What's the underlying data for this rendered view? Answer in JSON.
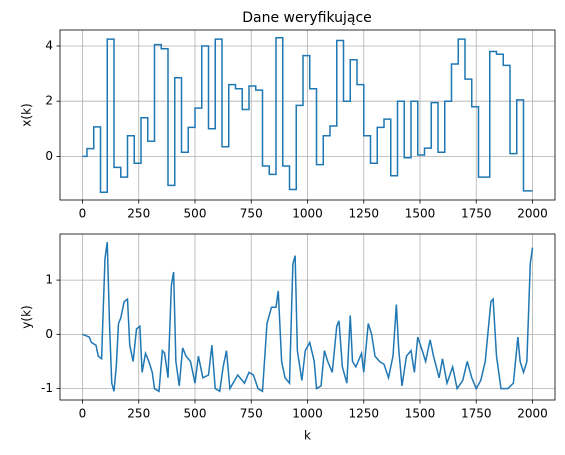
{
  "chart_data": [
    {
      "type": "step",
      "title": "Dane weryfikujące",
      "ylabel": "x(k)",
      "color": "#1f77b4",
      "grid": true,
      "xlim": [
        -100,
        2100
      ],
      "ylim": [
        -1.58,
        4.58
      ],
      "xticks": [
        0,
        250,
        500,
        750,
        1000,
        1250,
        1500,
        1750,
        2000
      ],
      "yticks": [
        0,
        2,
        4
      ],
      "x": [
        0,
        20,
        50,
        80,
        110,
        140,
        170,
        200,
        230,
        260,
        290,
        320,
        350,
        380,
        410,
        440,
        470,
        500,
        530,
        560,
        590,
        620,
        650,
        680,
        710,
        740,
        770,
        800,
        830,
        860,
        890,
        920,
        950,
        980,
        1010,
        1040,
        1070,
        1100,
        1130,
        1160,
        1190,
        1220,
        1250,
        1280,
        1310,
        1340,
        1370,
        1400,
        1430,
        1460,
        1490,
        1520,
        1550,
        1580,
        1610,
        1640,
        1670,
        1700,
        1730,
        1760,
        1810,
        1840,
        1870,
        1900,
        1930,
        1960,
        2000
      ],
      "values": [
        0,
        0.28,
        1.07,
        -1.3,
        4.25,
        -0.4,
        -0.75,
        0.75,
        -0.25,
        1.4,
        0.55,
        4.05,
        3.9,
        -1.05,
        2.85,
        0.15,
        1.05,
        1.75,
        4.0,
        1.0,
        4.25,
        0.35,
        2.6,
        2.45,
        1.7,
        2.55,
        2.4,
        -0.35,
        -0.65,
        4.3,
        -0.35,
        -1.2,
        1.85,
        3.65,
        2.45,
        -0.3,
        0.75,
        1.1,
        4.2,
        2.0,
        3.5,
        2.6,
        0.75,
        -0.25,
        1.05,
        1.35,
        -0.7,
        2.0,
        -0.05,
        2.0,
        0.05,
        0.3,
        1.95,
        0.15,
        2.0,
        3.35,
        4.25,
        2.8,
        1.8,
        -0.75,
        3.8,
        3.7,
        3.3,
        0.1,
        2.05,
        -1.25,
        -1.25
      ]
    },
    {
      "type": "line",
      "ylabel": "y(k)",
      "xlabel": "k",
      "color": "#1f77b4",
      "grid": true,
      "xlim": [
        -100,
        2100
      ],
      "ylim": [
        -1.21,
        1.85
      ],
      "xticks": [
        0,
        250,
        500,
        750,
        1000,
        1250,
        1500,
        1750,
        2000
      ],
      "yticks": [
        -1,
        0,
        1
      ],
      "x": [
        0,
        30,
        40,
        60,
        70,
        85,
        90,
        100,
        110,
        120,
        130,
        140,
        150,
        160,
        170,
        185,
        200,
        210,
        225,
        240,
        255,
        265,
        280,
        295,
        310,
        320,
        340,
        355,
        365,
        380,
        395,
        405,
        415,
        430,
        445,
        460,
        480,
        500,
        515,
        535,
        560,
        575,
        590,
        610,
        625,
        640,
        655,
        690,
        720,
        740,
        760,
        780,
        800,
        820,
        840,
        860,
        870,
        885,
        900,
        920,
        935,
        945,
        955,
        975,
        990,
        1010,
        1030,
        1040,
        1060,
        1075,
        1090,
        1110,
        1130,
        1140,
        1155,
        1175,
        1190,
        1200,
        1215,
        1240,
        1250,
        1270,
        1285,
        1300,
        1320,
        1340,
        1360,
        1380,
        1395,
        1405,
        1420,
        1440,
        1460,
        1475,
        1490,
        1510,
        1525,
        1545,
        1560,
        1585,
        1600,
        1620,
        1645,
        1665,
        1690,
        1710,
        1730,
        1750,
        1770,
        1790,
        1815,
        1825,
        1840,
        1860,
        1890,
        1915,
        1935,
        1945,
        1960,
        1975,
        1990,
        2000
      ],
      "values": [
        0,
        -0.05,
        -0.15,
        -0.2,
        -0.4,
        -0.45,
        0.2,
        1.4,
        1.7,
        0.2,
        -0.9,
        -1.05,
        -0.6,
        0.2,
        0.3,
        0.6,
        0.65,
        -0.2,
        -0.5,
        0.1,
        0.15,
        -0.7,
        -0.35,
        -0.5,
        -0.7,
        -1.0,
        -1.05,
        -0.3,
        -0.35,
        -0.8,
        0.9,
        1.15,
        -0.5,
        -0.95,
        -0.25,
        -0.4,
        -0.5,
        -0.9,
        -0.4,
        -0.8,
        -0.75,
        -0.2,
        -1.0,
        -1.05,
        -0.6,
        -0.3,
        -1.0,
        -0.75,
        -0.9,
        -0.7,
        -0.75,
        -1.0,
        -1.05,
        0.2,
        0.5,
        0.5,
        0.8,
        -0.5,
        -0.8,
        -0.9,
        1.3,
        1.45,
        -0.3,
        -0.85,
        -0.3,
        -0.15,
        -0.5,
        -1.0,
        -0.95,
        -0.3,
        -0.5,
        -0.7,
        0.15,
        0.25,
        -0.6,
        -0.9,
        0.35,
        -0.5,
        -0.6,
        -0.35,
        -0.7,
        0.2,
        0.0,
        -0.4,
        -0.5,
        -0.55,
        -0.8,
        -0.4,
        0.55,
        -0.25,
        -0.95,
        -0.4,
        -0.3,
        -0.7,
        -0.05,
        -0.3,
        -0.5,
        -0.1,
        -0.4,
        -0.8,
        -0.45,
        -0.9,
        -0.6,
        -1.0,
        -0.85,
        -0.5,
        -0.8,
        -1.0,
        -0.85,
        -0.5,
        0.6,
        0.65,
        -0.4,
        -1.0,
        -1.0,
        -0.9,
        -0.05,
        -0.5,
        -0.7,
        -0.5,
        1.3,
        1.6
      ]
    }
  ]
}
